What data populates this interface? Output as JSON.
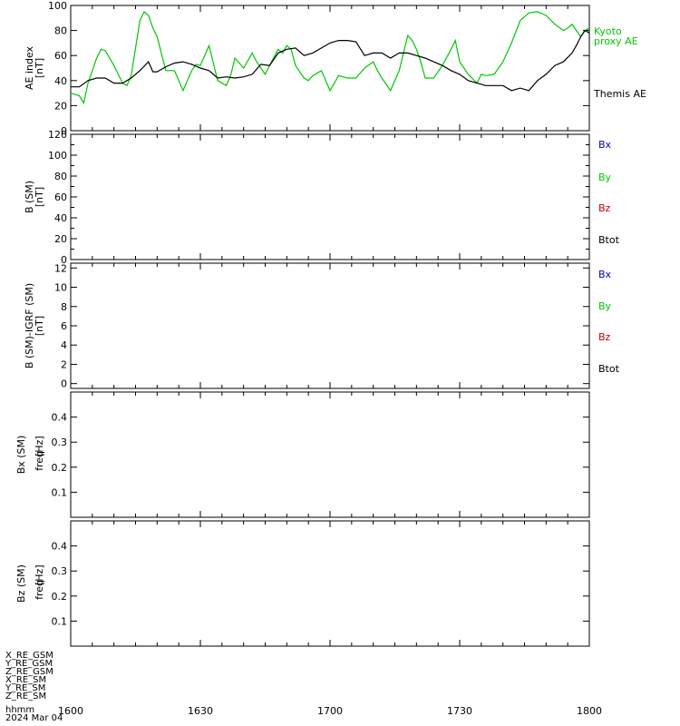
{
  "footer": {
    "rows": [
      "X_RE_GSM",
      "Y_RE_GSM",
      "Z_RE_GSM",
      "X_RE_SM",
      "Y_RE_SM",
      "Z_RE_SM"
    ],
    "hhmm": "hhmm",
    "date": "2024 Mar 04"
  },
  "chart_data": [
    {
      "type": "line",
      "panel": "ae-index",
      "ylabel_line1": "AE index",
      "ylabel_line2": "[nT]",
      "xlim": [
        0,
        120
      ],
      "ylim": [
        0,
        100
      ],
      "yticks": [
        0,
        20,
        40,
        60,
        80,
        100
      ],
      "xtick_values": [
        0,
        30,
        60,
        90,
        120
      ],
      "xtick_labels": [
        "1600",
        "1630",
        "1700",
        "1730",
        "1800"
      ],
      "legend": [
        "Kyoto",
        "proxy AE",
        "Themis AE"
      ],
      "series": [
        {
          "name": "Kyoto proxy AE",
          "color": "#00c800",
          "x": [
            0,
            2,
            3,
            4,
            6,
            7,
            8,
            10,
            12,
            13,
            14,
            16,
            17,
            18,
            19,
            20,
            22,
            24,
            26,
            28,
            29,
            30,
            32,
            34,
            36,
            37,
            38,
            40,
            42,
            43,
            44,
            45,
            46,
            48,
            49,
            50,
            51,
            52,
            54,
            55,
            56,
            58,
            60,
            62,
            64,
            66,
            67,
            68,
            70,
            71,
            72,
            74,
            76,
            78,
            79,
            80,
            81,
            82,
            84,
            86,
            88,
            89,
            90,
            92,
            94,
            95,
            96,
            98,
            100,
            102,
            104,
            106,
            108,
            110,
            112,
            114,
            115,
            116,
            117,
            118,
            119,
            120
          ],
          "y": [
            30,
            28,
            22,
            38,
            58,
            65,
            64,
            52,
            38,
            36,
            44,
            88,
            95,
            92,
            82,
            75,
            48,
            48,
            32,
            48,
            53,
            52,
            68,
            40,
            36,
            44,
            58,
            50,
            62,
            55,
            50,
            45,
            52,
            65,
            62,
            68,
            65,
            52,
            42,
            40,
            44,
            48,
            32,
            44,
            42,
            42,
            46,
            50,
            55,
            48,
            42,
            32,
            48,
            76,
            72,
            65,
            55,
            42,
            42,
            52,
            65,
            72,
            55,
            45,
            38,
            45,
            44,
            45,
            55,
            70,
            88,
            94,
            95,
            92,
            85,
            80,
            82,
            85,
            80,
            75,
            80,
            82
          ]
        },
        {
          "name": "Themis AE",
          "color": "#000000",
          "x": [
            0,
            2,
            4,
            6,
            8,
            10,
            12,
            14,
            16,
            18,
            19,
            20,
            22,
            24,
            26,
            28,
            30,
            32,
            34,
            36,
            38,
            40,
            42,
            44,
            46,
            48,
            50,
            52,
            54,
            56,
            58,
            60,
            62,
            64,
            66,
            68,
            70,
            72,
            74,
            76,
            78,
            80,
            82,
            84,
            86,
            88,
            90,
            92,
            94,
            96,
            98,
            100,
            102,
            104,
            106,
            108,
            110,
            112,
            114,
            116,
            117,
            118,
            119,
            120
          ],
          "y": [
            35,
            35,
            40,
            42,
            42,
            38,
            38,
            42,
            48,
            55,
            47,
            47,
            51,
            54,
            55,
            53,
            50,
            48,
            42,
            43,
            42,
            43,
            45,
            53,
            52,
            62,
            65,
            66,
            60,
            62,
            66,
            70,
            72,
            72,
            71,
            60,
            62,
            62,
            58,
            62,
            62,
            60,
            58,
            55,
            52,
            48,
            45,
            40,
            38,
            36,
            36,
            36,
            32,
            34,
            32,
            40,
            45,
            52,
            55,
            62,
            68,
            75,
            80,
            78
          ]
        }
      ]
    },
    {
      "type": "line",
      "panel": "b-sm",
      "ylabel_line1": "B (SM)",
      "ylabel_line2": "[nT]",
      "xlim": [
        0,
        120
      ],
      "ylim": [
        0,
        120
      ],
      "yticks": [
        0,
        10,
        20,
        30,
        40,
        50,
        60,
        70,
        80,
        90,
        100,
        110,
        120
      ],
      "ytick_labels": [
        "0",
        "20",
        "40",
        "60",
        "80",
        "100",
        "120"
      ],
      "legend": [
        "Bx",
        "By",
        "Bz",
        "Btot"
      ],
      "legend_colors": [
        "#0000c8",
        "#00c800",
        "#c80000",
        "#000000"
      ],
      "series": []
    },
    {
      "type": "line",
      "panel": "b-minus-igrf",
      "ylabel_line1": "B (SM)-IGRF (SM)",
      "ylabel_line2": "[nT]",
      "xlim": [
        0,
        120
      ],
      "ylim": [
        0,
        12
      ],
      "ytick_labels": [
        "0",
        "2",
        "4",
        "6",
        "8",
        "10",
        "12"
      ],
      "legend": [
        "Bx",
        "By",
        "Bz",
        "Btot"
      ],
      "legend_colors": [
        "#0000c8",
        "#00c800",
        "#c80000",
        "#000000"
      ],
      "series": []
    },
    {
      "type": "heatmap",
      "panel": "bx-spectrum",
      "ylabel_line1": "Bx (SM)",
      "ylabel_line2": "freq",
      "ylabel_unit": "[Hz]",
      "xlim": [
        0,
        120
      ],
      "ylim": [
        0,
        0.5
      ],
      "ytick_labels": [
        "0.1",
        "0.2",
        "0.3",
        "0.4"
      ],
      "series": []
    },
    {
      "type": "heatmap",
      "panel": "bz-spectrum",
      "ylabel_line1": "Bz (SM)",
      "ylabel_line2": "freq",
      "ylabel_unit": "[Hz]",
      "xlim": [
        0,
        120
      ],
      "ylim": [
        0,
        0.5
      ],
      "ytick_labels": [
        "0.1",
        "0.2",
        "0.3",
        "0.4"
      ],
      "series": []
    }
  ]
}
